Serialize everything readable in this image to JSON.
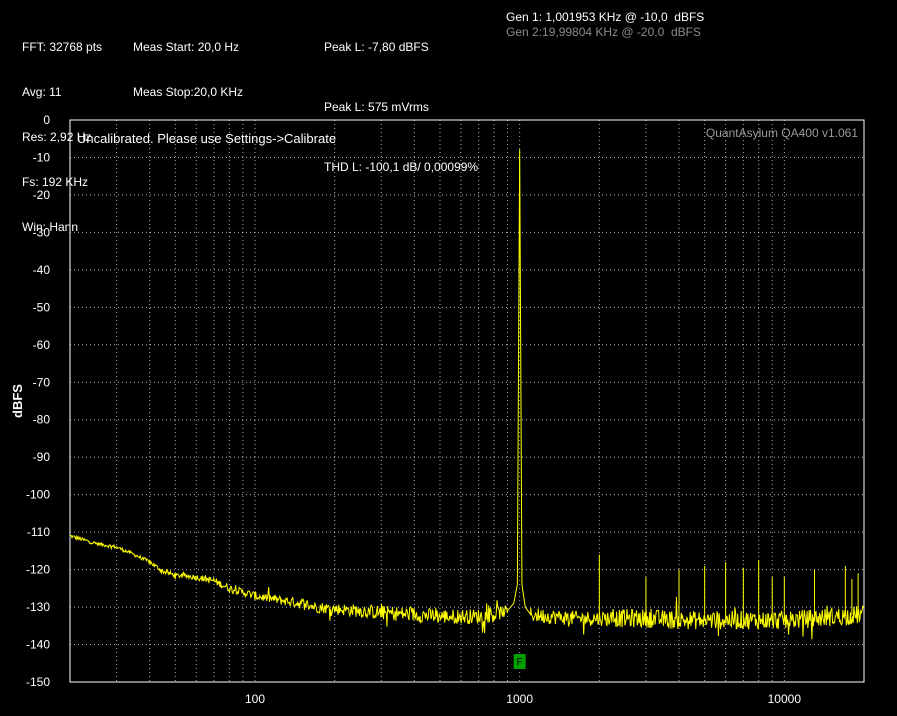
{
  "header": {
    "col1": [
      "FFT: 32768 pts",
      "Avg: 11",
      "Res: 2,92 Hz",
      "Fs: 192 KHz",
      "Win: Hann"
    ],
    "col2": [
      "Meas Start: 20,0 Hz",
      "Meas Stop:20,0 KHz"
    ],
    "col3": [
      "Peak L: -7,80 dBFS",
      "Peak L: 575 mVrms",
      "THD L: -100,1 dB/ 0,00099%"
    ],
    "gen1": "Gen 1: 1,001953 KHz @ -10,0  dBFS",
    "gen2": "Gen 2:19,99804 KHz @ -20,0  dBFS"
  },
  "plot": {
    "banner": "Uncalibrated. Please use Settings->Calibrate",
    "version": "QuantAsylum QA400 v1.061",
    "marker_label": "F",
    "colors": {
      "trace": "#ffff00",
      "grid": "#ffffff",
      "marker": "#00a000",
      "background": "#000000",
      "frame": "#ffffff"
    }
  },
  "chart_data": {
    "type": "line",
    "title": "",
    "xlabel": "",
    "ylabel": "dBFS",
    "xscale": "log",
    "xlim": [
      20,
      20000
    ],
    "ylim": [
      -150,
      0
    ],
    "x_ticks": [
      100,
      1000,
      10000
    ],
    "x_tick_labels": [
      "100",
      "1000",
      "10000"
    ],
    "y_ticks": [
      0,
      -10,
      -20,
      -30,
      -40,
      -50,
      -60,
      -70,
      -80,
      -90,
      -100,
      -110,
      -120,
      -130,
      -140,
      -150
    ],
    "y_tick_labels": [
      "0",
      "-10",
      "-20",
      "-30",
      "-40",
      "-50",
      "-60",
      "-70",
      "-80",
      "-90",
      "-100",
      "-110",
      "-120",
      "-130",
      "-140",
      "-150"
    ],
    "grid": true,
    "series": [
      {
        "x": [
          20,
          25,
          30,
          35,
          40,
          45,
          50,
          60,
          70,
          80,
          90,
          100,
          120,
          150,
          170,
          200,
          250,
          300,
          400,
          500,
          600,
          700,
          800,
          900,
          950,
          980,
          1000,
          1020,
          1050,
          1100,
          1300,
          1600,
          2000,
          2500,
          3000,
          4000,
          5000,
          6000,
          7000,
          8000,
          10000,
          13000,
          16000,
          20000
        ],
        "y": [
          -111,
          -113,
          -114,
          -116,
          -118,
          -120.5,
          -121.5,
          -122,
          -123,
          -125,
          -126,
          -127,
          -128,
          -129,
          -130,
          -130.5,
          -131,
          -131.5,
          -132,
          -132.5,
          -132.5,
          -132.5,
          -132,
          -131,
          -129,
          -124,
          -7.8,
          -124,
          -130,
          -132,
          -132.5,
          -133,
          -133,
          -133,
          -133,
          -133.5,
          -133.5,
          -133.5,
          -133.5,
          -133.5,
          -133.5,
          -133,
          -132.5,
          -132
        ],
        "noise": [
          0.5,
          0.5,
          0.5,
          0.5,
          0.6,
          0.6,
          0.6,
          0.8,
          1,
          1,
          1,
          1.2,
          1.2,
          1.5,
          1.5,
          1.5,
          1.8,
          2,
          2,
          2,
          2,
          2,
          2,
          1.5,
          1,
          0,
          0,
          0,
          1,
          2,
          2,
          2,
          2,
          2.5,
          2.5,
          2.5,
          2.5,
          2.5,
          2.5,
          2.5,
          2.5,
          2.5,
          2.5,
          2.5
        ]
      }
    ],
    "harmonics": {
      "x": [
        2000,
        3000,
        4000,
        5000,
        6000,
        7000,
        8000,
        9000,
        10000,
        13000,
        17000,
        18000,
        19000
      ],
      "y": [
        -116,
        -122,
        -120,
        -119,
        -118,
        -119.5,
        -117.5,
        -122,
        -122,
        -120,
        -119,
        -122.5,
        -121
      ]
    },
    "annotations": [
      "F"
    ]
  }
}
